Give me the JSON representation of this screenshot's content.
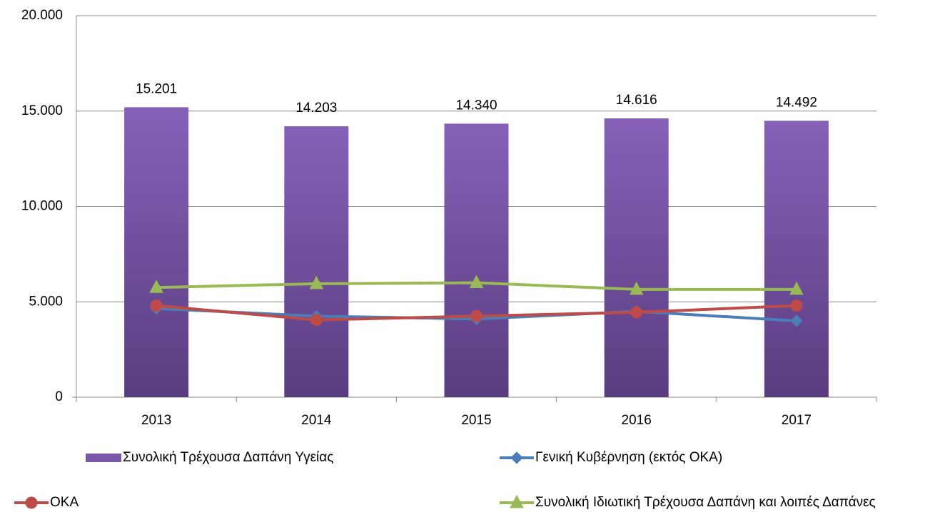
{
  "chart_data": {
    "type": "combo",
    "categories": [
      "2013",
      "2014",
      "2015",
      "2016",
      "2017"
    ],
    "ylim": [
      0,
      20000
    ],
    "yticks": [
      0,
      {
        "value": 5000,
        "label": "5.000"
      },
      {
        "value": 10000,
        "label": "10.000"
      },
      {
        "value": 15000,
        "label": "15.000"
      },
      {
        "value": 20000,
        "label": "20.000"
      }
    ],
    "grid": true,
    "series": [
      {
        "name": "Συνολική Τρέχουσα Δαπάνη Υγείας",
        "type": "bar",
        "color": "#7b57a8",
        "values": [
          15201,
          14203,
          14340,
          14616,
          14492
        ],
        "value_labels": [
          "15.201",
          "14.203",
          "14.340",
          "14.616",
          "14.492"
        ]
      },
      {
        "name": "Γενική Κυβέρνηση (εκτός ΟΚΑ)",
        "type": "line",
        "marker": "diamond",
        "color": "#4a7ebb",
        "values": [
          4650,
          4250,
          4100,
          4500,
          4000
        ]
      },
      {
        "name": "ΟΚΑ",
        "type": "line",
        "marker": "circle",
        "color": "#be4b48",
        "values": [
          4800,
          4050,
          4250,
          4450,
          4800
        ]
      },
      {
        "name": "Συνολική Ιδιωτική Τρέχουσα Δαπάνη και λοιπές Δαπάνες",
        "type": "line",
        "marker": "triangle",
        "color": "#98b954",
        "values": [
          5750,
          5950,
          6000,
          5650,
          5650
        ]
      }
    ]
  }
}
